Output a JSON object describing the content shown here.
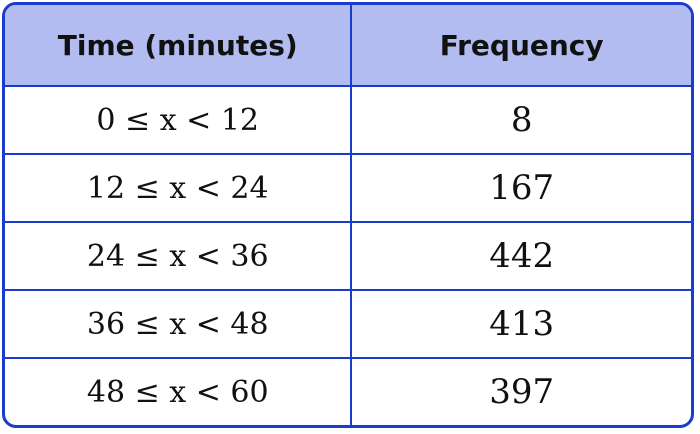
{
  "table": {
    "headers": [
      "Time (minutes)",
      "Frequency"
    ],
    "rows": [
      [
        "0 ≤ x < 12",
        "8"
      ],
      [
        "12 ≤ x < 24",
        "167"
      ],
      [
        "24 ≤ x < 36",
        "442"
      ],
      [
        "36 ≤ x < 48",
        "413"
      ],
      [
        "48 ≤ x < 60",
        "397"
      ]
    ]
  },
  "colors": {
    "border": "#1a3ccc",
    "header_bg": "#b3bcf0"
  }
}
